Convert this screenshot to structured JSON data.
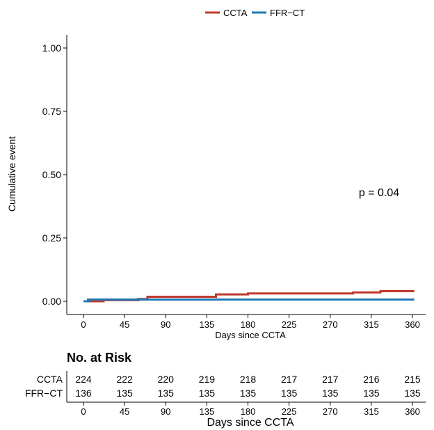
{
  "chart_data": {
    "type": "line",
    "legend": {
      "placement": "top",
      "entries": [
        {
          "name": "CCTA",
          "color": "#c0392b"
        },
        {
          "name": "FFR−CT",
          "color": "#1f77b4"
        }
      ]
    },
    "ylabel": "Cumulative event",
    "xlabel": "Days since CCTA",
    "xlim": [
      0,
      365
    ],
    "ylim": [
      0,
      1
    ],
    "x_ticks": [
      0,
      45,
      90,
      135,
      180,
      225,
      270,
      315,
      360
    ],
    "y_ticks": [
      0,
      0.25,
      0.5,
      0.75,
      1
    ],
    "y_tick_labels": [
      "0.00",
      "0.25",
      "0.50",
      "0.75",
      "1.00"
    ],
    "grid": false,
    "annotation": "p = 0.04",
    "step": true,
    "series": [
      {
        "name": "CCTA",
        "color": "#c0392b",
        "x": [
          0,
          2,
          22,
          60,
          70,
          145,
          180,
          295,
          325,
          362
        ],
        "y": [
          0,
          0,
          0.0045,
          0.009,
          0.018,
          0.027,
          0.031,
          0.035,
          0.04,
          0.04
        ]
      },
      {
        "name": "FFR−CT",
        "color": "#1f77b4",
        "x": [
          0,
          5,
          362
        ],
        "y": [
          0,
          0.007,
          0.007
        ]
      }
    ],
    "risk_table": {
      "title": "No. at Risk",
      "xlabel": "Days since CCTA",
      "times": [
        "0",
        "45",
        "90",
        "135",
        "180",
        "225",
        "270",
        "315",
        "360"
      ],
      "rows": [
        {
          "label": "CCTA",
          "values": [
            "224",
            "222",
            "220",
            "219",
            "218",
            "217",
            "217",
            "216",
            "215"
          ]
        },
        {
          "label": "FFR−CT",
          "values": [
            "136",
            "135",
            "135",
            "135",
            "135",
            "135",
            "135",
            "135",
            "135"
          ]
        }
      ]
    }
  }
}
